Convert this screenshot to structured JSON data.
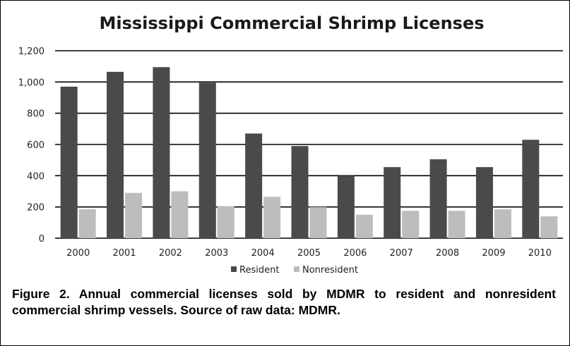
{
  "chart_data": {
    "type": "bar",
    "title": "Mississippi Commercial Shrimp Licenses",
    "categories": [
      "2000",
      "2001",
      "2002",
      "2003",
      "2004",
      "2005",
      "2006",
      "2007",
      "2008",
      "2009",
      "2010"
    ],
    "series": [
      {
        "name": "Resident",
        "color": "#4a4a4a",
        "values": [
          970,
          1065,
          1095,
          995,
          670,
          590,
          400,
          455,
          505,
          455,
          630
        ]
      },
      {
        "name": "Nonresident",
        "color": "#bdbdbd",
        "values": [
          185,
          290,
          300,
          205,
          265,
          200,
          150,
          175,
          175,
          185,
          140
        ]
      }
    ],
    "ylim": [
      0,
      1200
    ],
    "yticks": [
      "0",
      "200",
      "400",
      "600",
      "800",
      "1,000",
      "1,200"
    ],
    "ytick_values": [
      0,
      200,
      400,
      600,
      800,
      1000,
      1200
    ],
    "grid": true,
    "legend_position": "bottom"
  },
  "caption": "Figure 2. Annual commercial licenses sold by MDMR to resident and nonresident commercial shrimp vessels. Source of raw data: MDMR."
}
